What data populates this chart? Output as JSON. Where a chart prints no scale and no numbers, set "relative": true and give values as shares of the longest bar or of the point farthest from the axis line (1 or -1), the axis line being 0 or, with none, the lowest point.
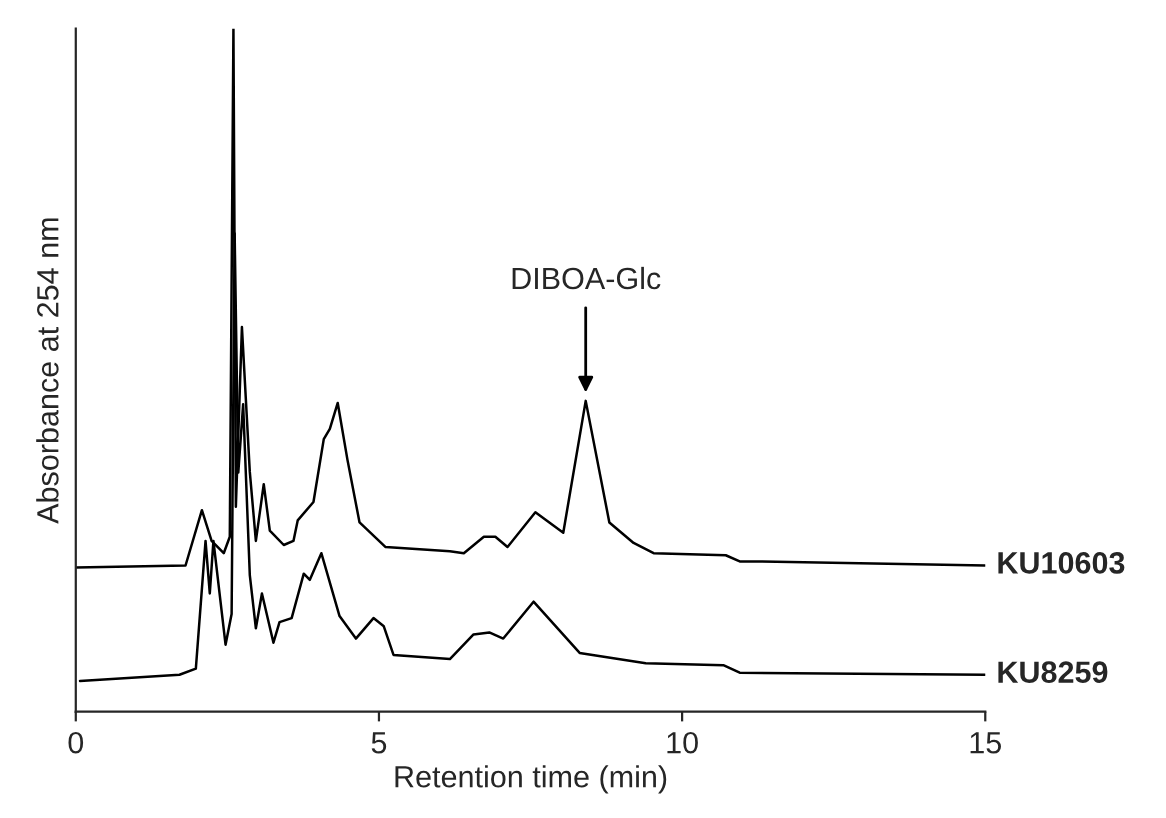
{
  "chart_data": {
    "type": "line",
    "relative": true,
    "xlabel": "Retention time (min)",
    "ylabel": "Absorbance at 254 nm",
    "xlim": [
      0,
      15
    ],
    "xticks": [
      0,
      5,
      10,
      15
    ],
    "tick_labels": "x",
    "grid": false,
    "legend": false,
    "marker": "none",
    "line_style": "solid",
    "annotations": [
      {
        "text": "DIBOA-Glc",
        "x": 8.41,
        "y": 0.455
      }
    ],
    "series": [
      {
        "name": "KU10603",
        "color": "#000000",
        "x": [
          0,
          1.81,
          2.08,
          2.24,
          2.44,
          2.54,
          2.6,
          2.64,
          2.74,
          2.87,
          2.97,
          3.1,
          3.2,
          3.43,
          3.59,
          3.66,
          3.92,
          4.09,
          4.19,
          4.32,
          4.48,
          4.68,
          5.11,
          6.17,
          6.4,
          6.73,
          6.92,
          7.12,
          7.58,
          8.04,
          8.41,
          8.8,
          9.2,
          9.53,
          10.72,
          10.95,
          11.28,
          15
        ],
        "values": [
          0.211,
          0.214,
          0.295,
          0.25,
          0.232,
          0.256,
          1.0,
          0.3,
          0.563,
          0.351,
          0.25,
          0.333,
          0.265,
          0.244,
          0.25,
          0.28,
          0.307,
          0.399,
          0.414,
          0.452,
          0.369,
          0.277,
          0.241,
          0.235,
          0.232,
          0.256,
          0.256,
          0.241,
          0.292,
          0.262,
          0.455,
          0.277,
          0.247,
          0.232,
          0.229,
          0.22,
          0.22,
          0.214
        ]
      },
      {
        "name": "KU8259",
        "color": "#000000",
        "x": [
          0.07,
          1.71,
          1.98,
          2.14,
          2.21,
          2.27,
          2.47,
          2.57,
          2.62,
          2.68,
          2.76,
          2.87,
          2.97,
          3.07,
          3.26,
          3.36,
          3.56,
          3.76,
          3.86,
          4.05,
          4.35,
          4.62,
          4.91,
          5.08,
          5.24,
          6.17,
          6.56,
          6.82,
          7.05,
          7.55,
          8.31,
          9.4,
          10.68,
          10.95,
          15
        ],
        "values": [
          0.045,
          0.054,
          0.063,
          0.25,
          0.173,
          0.25,
          0.098,
          0.143,
          0.7,
          0.35,
          0.45,
          0.2,
          0.122,
          0.173,
          0.101,
          0.131,
          0.137,
          0.202,
          0.193,
          0.232,
          0.14,
          0.107,
          0.137,
          0.125,
          0.083,
          0.077,
          0.113,
          0.116,
          0.107,
          0.161,
          0.086,
          0.071,
          0.068,
          0.057,
          0.054
        ]
      }
    ]
  }
}
